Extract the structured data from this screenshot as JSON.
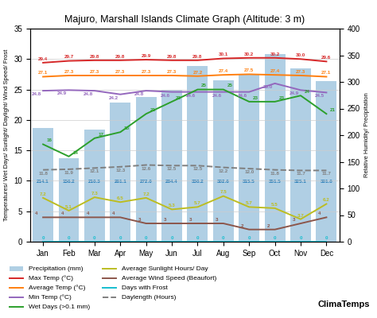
{
  "chart_data": {
    "type": "bar",
    "title": "Majuro, Marshall Islands Climate Graph (Altitude: 3 m)",
    "y_label": "Temperatures/ Wet Days/ Sunlight/ Daylight/ Wind Speed/ Frost",
    "y2_label": "Relative Humidity/ Precipitation",
    "categories": [
      "Jan",
      "Feb",
      "Mar",
      "Apr",
      "May",
      "Jun",
      "Jul",
      "Aug",
      "Sep",
      "Oct",
      "Nov",
      "Dec"
    ],
    "series": [
      {
        "name": "Precipitation (mm)",
        "type": "bar",
        "axis": "y2",
        "color": "#1f77b4",
        "values": [
          214.1,
          156.2,
          210.3,
          261.1,
          272.0,
          284.4,
          330.2,
          302.6,
          315.5,
          351.5,
          325.1,
          301.0
        ]
      },
      {
        "name": "Max Temp (°C)",
        "type": "line",
        "color": "#d62728",
        "values": [
          29.4,
          29.7,
          29.8,
          29.8,
          29.9,
          29.8,
          29.8,
          30.1,
          30.2,
          30.2,
          30.0,
          29.6
        ]
      },
      {
        "name": "Average Temp (°C)",
        "type": "line",
        "color": "#ff7f0e",
        "values": [
          27.1,
          27.3,
          27.3,
          27.3,
          27.3,
          27.3,
          27.2,
          27.4,
          27.5,
          27.4,
          27.3,
          27.1
        ]
      },
      {
        "name": "Min Temp (°C)",
        "type": "line",
        "color": "#9467bd",
        "values": [
          24.8,
          24.9,
          24.8,
          24.2,
          24.8,
          24.6,
          24.6,
          24.6,
          24.6,
          26.0,
          24.9,
          24.5
        ]
      },
      {
        "name": "Wet Days (>0.1 mm)",
        "type": "line",
        "color": "#2ca02c",
        "values": [
          16,
          14,
          17,
          18,
          21,
          23,
          25,
          25,
          23,
          23,
          24,
          21
        ]
      },
      {
        "name": "Average Sunlight Hours/ Day",
        "type": "line",
        "color": "#bcbd22",
        "values": [
          7.2,
          5.1,
          7.3,
          6.5,
          7.2,
          5.3,
          5.7,
          7.5,
          5.7,
          5.5,
          3.7,
          6.2
        ]
      },
      {
        "name": "Average Wind Speed (Beaufort)",
        "type": "line",
        "color": "#8c564b",
        "values": [
          4,
          4,
          4,
          4,
          3,
          3,
          3,
          3,
          2,
          2,
          3,
          4
        ]
      },
      {
        "name": "Days with Frost",
        "type": "line",
        "color": "#17becf",
        "values": [
          0,
          0,
          0,
          0,
          0,
          0,
          0,
          0,
          0,
          0,
          0,
          0
        ]
      },
      {
        "name": "Daylength (Hours)",
        "type": "line",
        "color": "#7f7f7f",
        "line_style": "dashed",
        "values": [
          11.8,
          11.9,
          12.1,
          12.3,
          12.6,
          12.5,
          12.5,
          12.2,
          12.0,
          11.8,
          11.7,
          11.7
        ]
      }
    ],
    "ylim": [
      0,
      35
    ],
    "yticks": [
      0,
      5,
      10,
      15,
      20,
      25,
      30,
      35
    ],
    "y2lim": [
      0,
      400
    ],
    "y2ticks": [
      0,
      50,
      100,
      150,
      200,
      250,
      300,
      350,
      400
    ],
    "grid": true,
    "legend": "bottom",
    "data_labels": true,
    "annotations": [
      {
        "text": "ClimaTemps"
      }
    ]
  }
}
